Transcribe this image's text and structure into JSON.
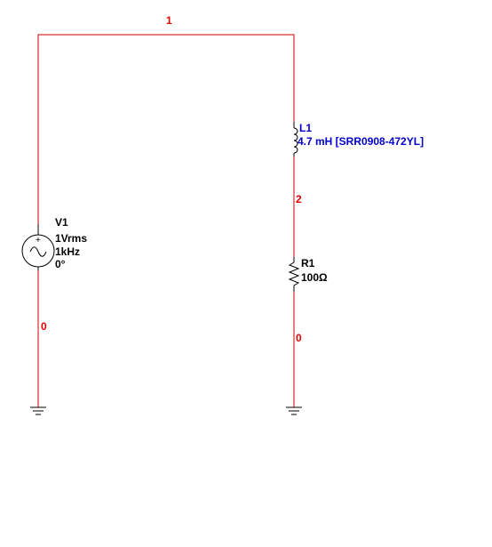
{
  "colors": {
    "wire": "#cc0000",
    "net_label": "#e00000",
    "component": "#000000",
    "component_label": "#000000",
    "inductor_label": "#0000cc"
  },
  "nets": {
    "top": "1",
    "middle": "2",
    "left_ground": "0",
    "right_ground": "0"
  },
  "components": {
    "v1": {
      "ref": "V1",
      "amplitude": "1Vrms",
      "frequency": "1kHz",
      "phase": "0°",
      "icon": "ac-voltage-source-icon"
    },
    "l1": {
      "ref": "L1",
      "value": "4.7 mH  [SRR0908-472YL]",
      "icon": "inductor-icon"
    },
    "r1": {
      "ref": "R1",
      "value": "100Ω",
      "icon": "resistor-icon"
    }
  },
  "grounds": [
    "ground-icon",
    "ground-icon"
  ]
}
